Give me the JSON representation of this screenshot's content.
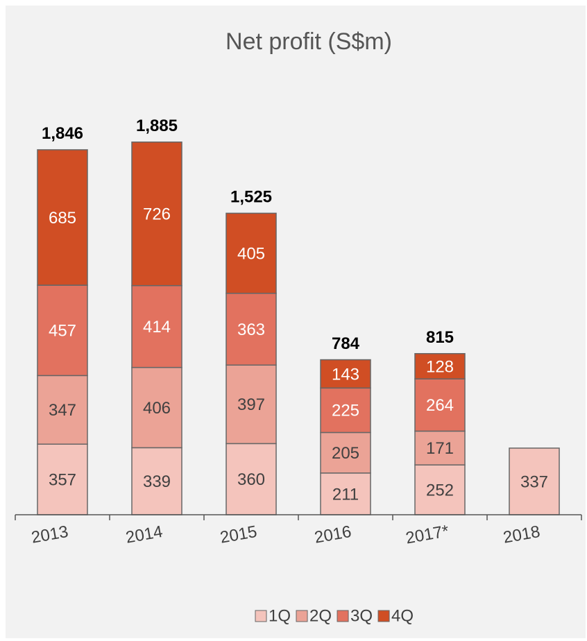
{
  "chart_data": {
    "type": "stacked_bar",
    "title": "Net profit (S$m)",
    "categories": [
      "2013",
      "2014",
      "2015",
      "2016",
      "2017*",
      "2018"
    ],
    "series": [
      {
        "name": "1Q",
        "color": "#f4c4bc",
        "values": [
          357,
          339,
          360,
          211,
          252,
          337
        ]
      },
      {
        "name": "2Q",
        "color": "#eba396",
        "values": [
          347,
          406,
          397,
          205,
          171,
          null
        ]
      },
      {
        "name": "3Q",
        "color": "#e2725f",
        "values": [
          457,
          414,
          363,
          225,
          264,
          null
        ]
      },
      {
        "name": "4Q",
        "color": "#d04e24",
        "values": [
          685,
          726,
          405,
          143,
          128,
          null
        ]
      }
    ],
    "totals": [
      1846,
      1885,
      1525,
      784,
      815,
      null
    ],
    "total_labels": [
      "1,846",
      "1,885",
      "1,525",
      "784",
      "815",
      null
    ],
    "ylim": [
      0,
      2000
    ],
    "legend": "bottom"
  }
}
